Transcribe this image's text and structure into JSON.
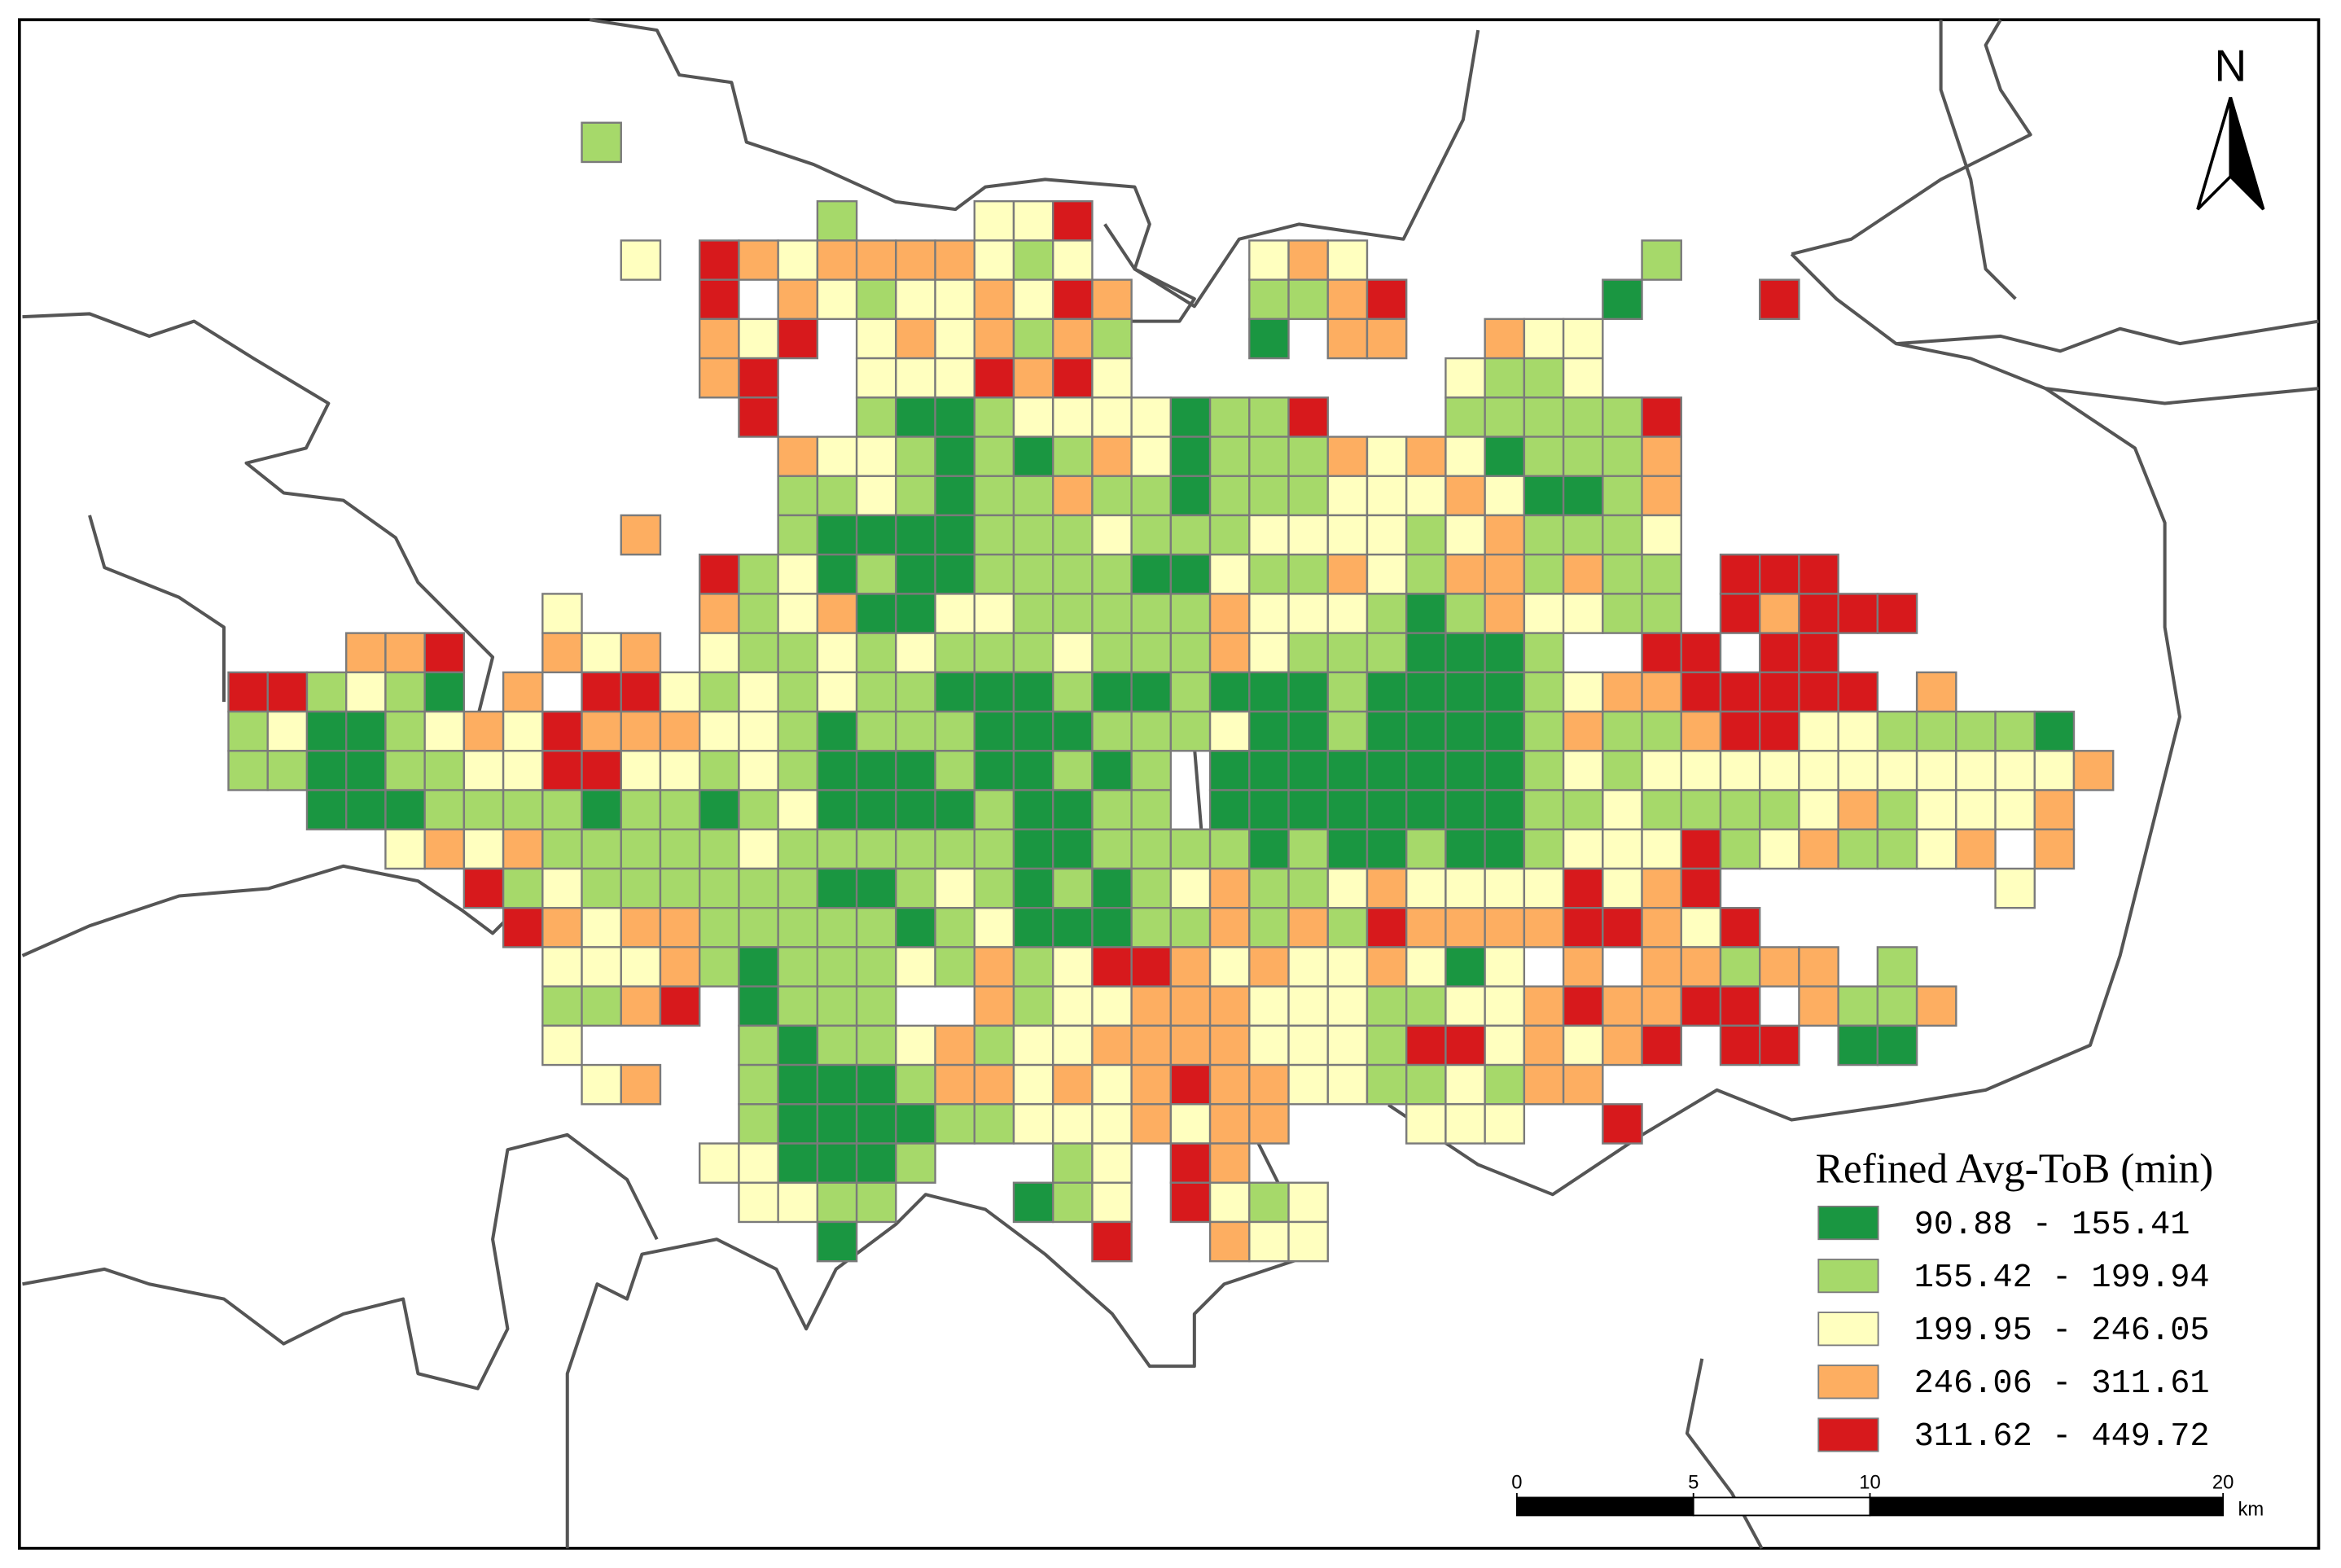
{
  "map": {
    "north": "N",
    "legend": {
      "title": "Refined Avg-ToB (min)",
      "classes": [
        {
          "label": "90.88 - 155.41",
          "color": "#1a9641"
        },
        {
          "label": "155.42 - 199.94",
          "color": "#a6d96a"
        },
        {
          "label": "199.95 - 246.05",
          "color": "#ffffbf"
        },
        {
          "label": "246.06 - 311.61",
          "color": "#fdae61"
        },
        {
          "label": "311.62 - 449.72",
          "color": "#d7191c"
        }
      ]
    },
    "scale_bar": {
      "ticks": [
        0,
        5,
        10,
        20
      ],
      "unit": "km"
    },
    "grid": {
      "cells": [
        ".........2",
        "",
        "...............2...335",
        "..........3.5434444323....343.......2",
        "............5.432334354...2245.....1...5",
        "............435.3434242...1.44..433",
        "............45..3335453........3223",
        ".............5..211233331225...222225",
        "..............43321212431222434312224",
        "..............22321224221222333431124",
        "..........4...21111222322233332342223",
        "............5231211222211322432442422.555",
        "........3...4234113322222433321243322.54555",
        "...445..434.3223232223222432221112..55.55",
        "552321.4.553232322111211211121111234455555.4",
        "23112343544433212221112223112111124224553322221",
        "221122335533232111211212.11111111232333333333334",
        "..1112222122123111121122.1111111122322223423334",
        "....34342222232222221122221211211233352342234.4",
        "......52322222211232121234223433335345.......3",
        ".......54344222221231112242425444455435",
        "........3334212223242355434334313 4.44244.2",
        "........2245.1222..42334443332233454455 4224",
        "........3....212234233444433325534345 55.11",
        ".........34..2111244343454433223244",
        ".............21111223334344...333..5",
        "............331112...23.54",
        ".............3322...123.5323",
        "...............1......5..433"
      ]
    }
  }
}
